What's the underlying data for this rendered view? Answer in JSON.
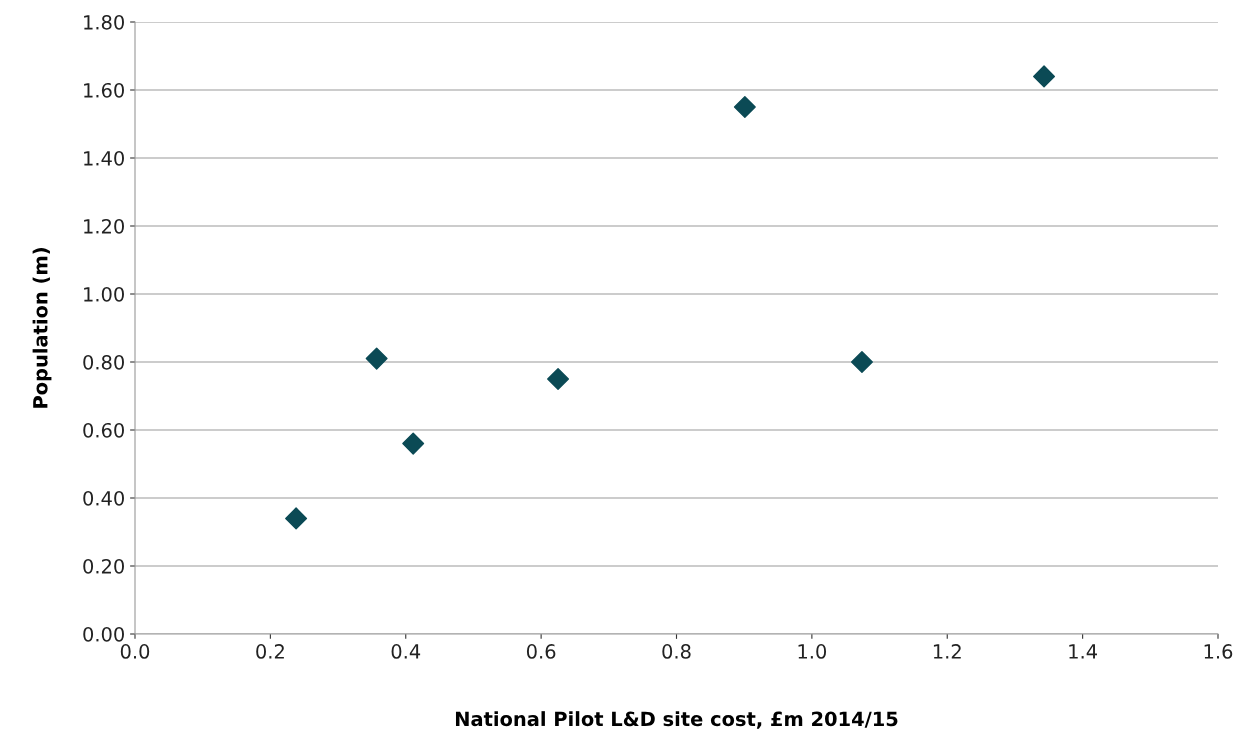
{
  "chart_data": {
    "type": "scatter",
    "xlabel": "National Pilot L&D site cost, £m 2014/15",
    "ylabel": "Population (m)",
    "x": [
      0.238,
      0.357,
      0.411,
      0.625,
      0.901,
      1.074,
      1.343
    ],
    "series": [
      {
        "color": "#0b4a55",
        "values": [
          0.34,
          0.81,
          0.56,
          0.75,
          1.55,
          0.8,
          1.64
        ]
      }
    ],
    "marker": "diamond",
    "xlim": [
      0,
      1.6
    ],
    "xticks": [
      {
        "value": 0,
        "label": "0.0"
      },
      0.2,
      0.4,
      0.6,
      0.8,
      {
        "value": 1,
        "label": "1.0"
      },
      1.2,
      1.4,
      1.6
    ],
    "ylim": [
      0,
      1.8
    ],
    "yticks": [
      {
        "value": 0,
        "label": "0.00"
      },
      {
        "value": 0.2,
        "label": "0.20"
      },
      {
        "value": 0.4,
        "label": "0.40"
      },
      {
        "value": 0.6,
        "label": "0.60"
      },
      {
        "value": 0.8,
        "label": "0.80"
      },
      {
        "value": 1,
        "label": "1.00"
      },
      {
        "value": 1.2,
        "label": "1.20"
      },
      {
        "value": 1.4,
        "label": "1.40"
      },
      {
        "value": 1.6,
        "label": "1.60"
      },
      {
        "value": 1.8,
        "label": "1.80"
      }
    ],
    "grid": "y"
  }
}
